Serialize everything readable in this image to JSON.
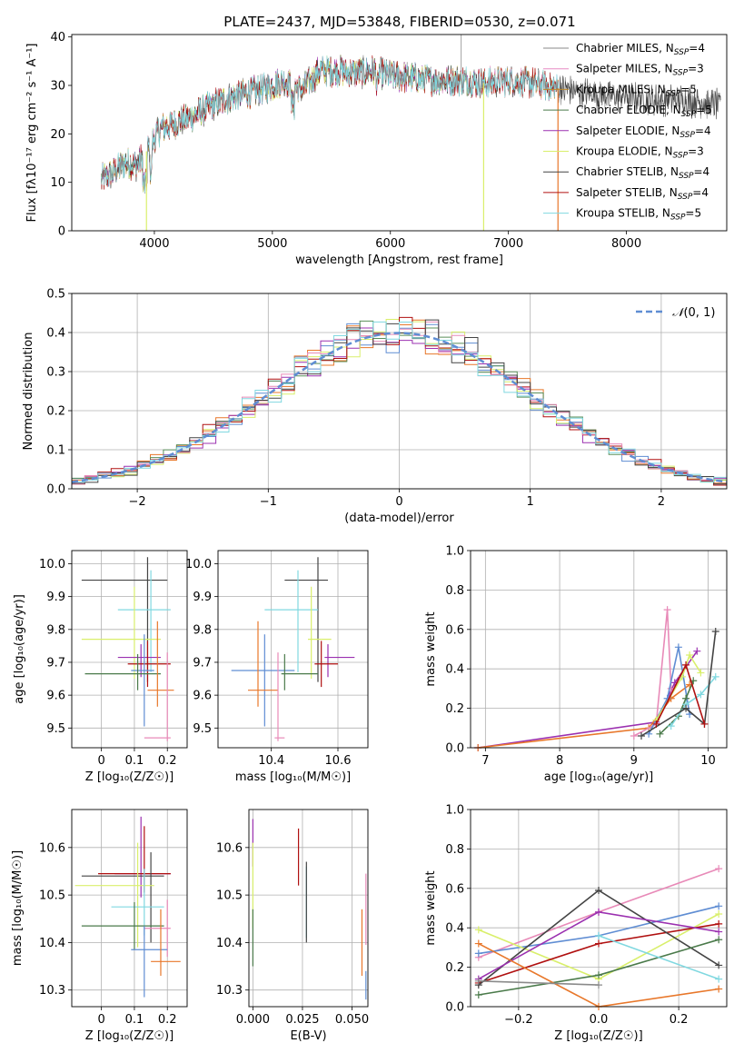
{
  "figure": {
    "title": "PLATE=2437, MJD=53848, FIBERID=0530, z=0.071"
  },
  "colors": {
    "Chabrier MILES": "#8a8a8a",
    "Salpeter MILES": "#e78ac3",
    "Kroupa MILES": "#c08a2a",
    "Chabrier ELODIE": "#4a7a4a",
    "Salpeter ELODIE": "#9b30b0",
    "Kroupa ELODIE": "#d9ef6b",
    "Chabrier STELIB": "#444444",
    "Salpeter STELIB": "#b01010",
    "Kroupa STELIB": "#80d8e0",
    "blue": "#5f8dd3",
    "orange": "#e8772a",
    "green": "#5a8f5a",
    "pink": "#e88ab8"
  },
  "chart_data": [
    {
      "id": "spectrum",
      "type": "line",
      "title": "PLATE=2437, MJD=53848, FIBERID=0530, z=0.071",
      "xlabel": "wavelength [Angstrom, rest frame]",
      "ylabel": "Flux [f$_\\lambda$10$^{-17}$ erg cm$^{-2}$ s$^{-1}$ A$^{-1}$]",
      "ylabel_display": "Flux [fλ10⁻¹⁷ erg cm⁻² s⁻¹ A⁻¹]",
      "xlim": [
        3300,
        8850
      ],
      "ylim": [
        0,
        40.5
      ],
      "xticks": [
        4000,
        5000,
        6000,
        7000,
        8000
      ],
      "yticks": [
        0,
        10,
        20,
        30,
        40
      ],
      "grid": false,
      "legend_position": "upper-right",
      "legend": [
        {
          "name": "Chabrier MILES, N_SSP=4",
          "label": "Chabrier MILES, N",
          "sub": "SSP",
          "suffix": "=4"
        },
        {
          "name": "Salpeter MILES, N_SSP=3",
          "label": "Salpeter MILES, N",
          "sub": "SSP",
          "suffix": "=3"
        },
        {
          "name": "Kroupa MILES, N_SSP=5",
          "label": "Kroupa MILES, N",
          "sub": "SSP",
          "suffix": "=5"
        },
        {
          "name": "Chabrier ELODIE, N_SSP=5",
          "label": "Chabrier ELODIE, N",
          "sub": "SSP",
          "suffix": "=5"
        },
        {
          "name": "Salpeter ELODIE, N_SSP=4",
          "label": "Salpeter ELODIE, N",
          "sub": "SSP",
          "suffix": "=4"
        },
        {
          "name": "Kroupa ELODIE, N_SSP=3",
          "label": "Kroupa ELODIE, N",
          "sub": "SSP",
          "suffix": "=3"
        },
        {
          "name": "Chabrier STELIB, N_SSP=4",
          "label": "Chabrier STELIB, N",
          "sub": "SSP",
          "suffix": "=4"
        },
        {
          "name": "Salpeter STELIB, N_SSP=4",
          "label": "Salpeter STELIB, N",
          "sub": "SSP",
          "suffix": "=4"
        },
        {
          "name": "Kroupa STELIB, N_SSP=5",
          "label": "Kroupa STELIB, N",
          "sub": "SSP",
          "suffix": "=5"
        }
      ],
      "envelope": {
        "x": [
          3550,
          3650,
          3750,
          3850,
          3950,
          4050,
          4200,
          4350,
          4500,
          4650,
          4800,
          4950,
          5100,
          5250,
          5400,
          5550,
          5700,
          5850,
          6000,
          6200,
          6400,
          6600,
          6800,
          7000,
          7200,
          7400,
          7600,
          7800,
          8000,
          8200,
          8400,
          8600,
          8800
        ],
        "y": [
          10.5,
          12,
          14,
          13.5,
          17,
          21,
          22.5,
          24,
          26,
          27.5,
          28.5,
          29.5,
          31,
          29,
          33,
          33,
          32.5,
          33,
          32,
          31.5,
          31,
          31,
          30.5,
          31,
          30.5,
          29.5,
          28.5,
          28,
          27.5,
          27,
          27,
          26.5,
          26
        ]
      },
      "dips": [
        {
          "x": 3933,
          "y": 0
        },
        {
          "x": 6790,
          "y": 0
        },
        {
          "x": 7420,
          "y": 0
        }
      ],
      "spike": {
        "x": 6600,
        "y": 40.5
      }
    },
    {
      "id": "residuals",
      "type": "histogram",
      "xlabel": "(data-model)/error",
      "ylabel": "Normed distribution",
      "xlim": [
        -2.5,
        2.5
      ],
      "ylim": [
        0,
        0.5
      ],
      "xticks": [
        -2,
        -1,
        0,
        1,
        2
      ],
      "xtick_labels": [
        "−2",
        "−1",
        "0",
        "1",
        "2"
      ],
      "yticks": [
        0.0,
        0.1,
        0.2,
        0.3,
        0.4,
        0.5
      ],
      "grid": true,
      "legend_position": "upper-right",
      "reference_curve": {
        "name": "N(0,1)",
        "label_main": "𝒩",
        "label_args": "(0, 1)",
        "mean": 0,
        "sigma": 1,
        "style": "dashed"
      },
      "bin_width": 0.1,
      "bins_start": -2.5
    },
    {
      "id": "age-vs-Z",
      "type": "errorbar",
      "xlabel": "Z [log₁₀(Z/Z☉)]",
      "ylabel": "age  [log₁₀(age/yr)]",
      "xlim": [
        -0.09,
        0.26
      ],
      "ylim": [
        9.44,
        10.04
      ],
      "xticks": [
        0.0,
        0.1,
        0.2
      ],
      "yticks": [
        9.5,
        9.6,
        9.7,
        9.8,
        9.9,
        10.0
      ],
      "grid": true,
      "points": [
        {
          "series": "Chabrier STELIB",
          "x": 0.14,
          "xerr": [
            0.2,
            0.06
          ],
          "y": 9.95,
          "yerr": [
            0.31,
            0.07
          ]
        },
        {
          "series": "Kroupa STELIB",
          "x": 0.15,
          "xerr": [
            0.1,
            0.06
          ],
          "y": 9.86,
          "yerr": [
            0.19,
            0.12
          ]
        },
        {
          "series": "Kroupa ELODIE",
          "x": 0.1,
          "xerr": [
            0.16,
            0.08
          ],
          "y": 9.77,
          "yerr": [
            0.12,
            0.16
          ]
        },
        {
          "series": "Salpeter ELODIE",
          "x": 0.12,
          "xerr": [
            0.07,
            0.06
          ],
          "y": 9.715,
          "yerr": [
            0.06,
            0.04
          ]
        },
        {
          "series": "Salpeter STELIB",
          "x": 0.14,
          "xerr": [
            0.06,
            0.07
          ],
          "y": 9.695,
          "yerr": [
            0.07,
            0.07
          ]
        },
        {
          "series": "blue",
          "x": 0.13,
          "xerr": [
            0.04,
            0.03
          ],
          "y": 9.675,
          "yerr": [
            0.17,
            0.11
          ]
        },
        {
          "series": "Chabrier ELODIE",
          "x": 0.11,
          "xerr": [
            0.16,
            0.07
          ],
          "y": 9.665,
          "yerr": [
            0.05,
            0.06
          ]
        },
        {
          "series": "orange",
          "x": 0.17,
          "xerr": [
            0.03,
            0.05
          ],
          "y": 9.615,
          "yerr": [
            0.05,
            0.21
          ]
        },
        {
          "series": "pink",
          "x": 0.2,
          "xerr": [
            0.07,
            0.01
          ],
          "y": 9.47,
          "yerr": [
            0.01,
            0.26
          ]
        }
      ]
    },
    {
      "id": "age-vs-mass",
      "type": "errorbar",
      "xlabel": "mass [log₁₀(M/M☉)]",
      "ylabel": "",
      "xlim": [
        10.24,
        10.69
      ],
      "ylim": [
        9.44,
        10.04
      ],
      "xticks": [
        10.4,
        10.6
      ],
      "yticks": [
        9.5,
        9.6,
        9.7,
        9.8,
        9.9,
        10.0
      ],
      "grid": true,
      "points": [
        {
          "series": "Chabrier STELIB",
          "x": 10.54,
          "xerr": [
            0.1,
            0.03
          ],
          "y": 9.95,
          "yerr": [
            0.31,
            0.07
          ]
        },
        {
          "series": "Kroupa STELIB",
          "x": 10.48,
          "xerr": [
            0.1,
            0.06
          ],
          "y": 9.86,
          "yerr": [
            0.19,
            0.12
          ]
        },
        {
          "series": "Kroupa ELODIE",
          "x": 10.52,
          "xerr": [
            0.01,
            0.06
          ],
          "y": 9.77,
          "yerr": [
            0.12,
            0.16
          ]
        },
        {
          "series": "Salpeter ELODIE",
          "x": 10.57,
          "xerr": [
            0.01,
            0.08
          ],
          "y": 9.715,
          "yerr": [
            0.06,
            0.04
          ]
        },
        {
          "series": "Salpeter STELIB",
          "x": 10.55,
          "xerr": [
            0.02,
            0.05
          ],
          "y": 9.695,
          "yerr": [
            0.07,
            0.07
          ]
        },
        {
          "series": "blue",
          "x": 10.38,
          "xerr": [
            0.1,
            0.09
          ],
          "y": 9.675,
          "yerr": [
            0.17,
            0.11
          ]
        },
        {
          "series": "Chabrier ELODIE",
          "x": 10.44,
          "xerr": [
            0.01,
            0.1
          ],
          "y": 9.665,
          "yerr": [
            0.05,
            0.06
          ]
        },
        {
          "series": "orange",
          "x": 10.36,
          "xerr": [
            0.03,
            0.06
          ],
          "y": 9.615,
          "yerr": [
            0.05,
            0.21
          ]
        },
        {
          "series": "pink",
          "x": 10.42,
          "xerr": [
            0.01,
            0.02
          ],
          "y": 9.47,
          "yerr": [
            0.01,
            0.26
          ]
        }
      ]
    },
    {
      "id": "weight-vs-age",
      "type": "line",
      "xlabel": "age  [log₁₀(age/yr)]",
      "ylabel": "mass weight",
      "xlim": [
        6.8,
        10.25
      ],
      "ylim": [
        0,
        1
      ],
      "xticks": [
        7,
        8,
        9,
        10
      ],
      "yticks": [
        0.0,
        0.2,
        0.4,
        0.6,
        0.8,
        1.0
      ],
      "grid": true,
      "series": [
        {
          "name": "Salpeter ELODIE",
          "x": [
            6.9,
            9.3,
            9.55,
            9.85
          ],
          "y": [
            0.0,
            0.13,
            0.33,
            0.49
          ]
        },
        {
          "name": "orange",
          "x": [
            6.9,
            9.2,
            9.5,
            9.75
          ],
          "y": [
            0.0,
            0.1,
            0.25,
            0.32
          ]
        },
        {
          "name": "pink",
          "x": [
            9.0,
            9.3,
            9.45,
            9.5
          ],
          "y": [
            0.06,
            0.12,
            0.7,
            0.3
          ]
        },
        {
          "name": "blue",
          "x": [
            9.2,
            9.45,
            9.6,
            9.75
          ],
          "y": [
            0.07,
            0.25,
            0.51,
            0.17
          ]
        },
        {
          "name": "Kroupa ELODIE",
          "x": [
            9.3,
            9.65,
            9.75,
            9.9
          ],
          "y": [
            0.14,
            0.36,
            0.47,
            0.38
          ]
        },
        {
          "name": "Chabrier ELODIE",
          "x": [
            9.35,
            9.6,
            9.7,
            9.8
          ],
          "y": [
            0.07,
            0.16,
            0.25,
            0.34
          ]
        },
        {
          "name": "Kroupa STELIB",
          "x": [
            9.5,
            9.7,
            9.9,
            10.1
          ],
          "y": [
            0.11,
            0.22,
            0.27,
            0.36
          ]
        },
        {
          "name": "Chabrier STELIB",
          "x": [
            9.1,
            9.7,
            9.95,
            10.1
          ],
          "y": [
            0.06,
            0.2,
            0.12,
            0.59
          ]
        },
        {
          "name": "Salpeter STELIB",
          "x": [
            9.3,
            9.7,
            9.95
          ],
          "y": [
            0.12,
            0.42,
            0.12
          ]
        }
      ]
    },
    {
      "id": "mass-vs-Z",
      "type": "errorbar",
      "xlabel": "Z [log₁₀(Z/Z☉)]",
      "ylabel": "mass [log₁₀(M/M☉)]",
      "xlim": [
        -0.09,
        0.26
      ],
      "ylim": [
        10.265,
        10.68
      ],
      "xticks": [
        0.0,
        0.1,
        0.2
      ],
      "yticks": [
        10.3,
        10.4,
        10.5,
        10.6
      ],
      "grid": true,
      "points": [
        {
          "series": "Salpeter ELODIE",
          "x": 0.12,
          "xerr": [
            0.08,
            0.09
          ],
          "y": 10.545,
          "yerr": [
            0.05,
            0.12
          ]
        },
        {
          "series": "Salpeter STELIB",
          "x": 0.13,
          "xerr": [
            0.14,
            0.08
          ],
          "y": 10.545,
          "yerr": [
            0.04,
            0.1
          ]
        },
        {
          "series": "Chabrier STELIB",
          "x": 0.15,
          "xerr": [
            0.21,
            0.04
          ],
          "y": 10.54,
          "yerr": [
            0.14,
            0.05
          ]
        },
        {
          "series": "Kroupa ELODIE",
          "x": 0.11,
          "xerr": [
            0.19,
            0.05
          ],
          "y": 10.52,
          "yerr": [
            0.13,
            0.09
          ]
        },
        {
          "series": "Kroupa STELIB",
          "x": 0.13,
          "xerr": [
            0.1,
            0.06
          ],
          "y": 10.475,
          "yerr": [
            0.06,
            0.08
          ]
        },
        {
          "series": "Chabrier ELODIE",
          "x": 0.1,
          "xerr": [
            0.16,
            0.09
          ],
          "y": 10.435,
          "yerr": [
            0.05,
            0.05
          ]
        },
        {
          "series": "pink",
          "x": 0.2,
          "xerr": [
            0.07,
            0.01
          ],
          "y": 10.43,
          "yerr": [
            0.06,
            0.06
          ]
        },
        {
          "series": "blue",
          "x": 0.13,
          "xerr": [
            0.04,
            0.07
          ],
          "y": 10.385,
          "yerr": [
            0.1,
            0.05
          ]
        },
        {
          "series": "orange",
          "x": 0.18,
          "xerr": [
            0.03,
            0.06
          ],
          "y": 10.36,
          "yerr": [
            0.03,
            0.11
          ]
        }
      ]
    },
    {
      "id": "mass-vs-EBV",
      "type": "errorbar",
      "xlabel": "E(B-V)",
      "ylabel": "",
      "xlim": [
        -0.002,
        0.058
      ],
      "ylim": [
        10.265,
        10.68
      ],
      "xticks": [
        0.0,
        0.025,
        0.05
      ],
      "xtick_labels": [
        "0.000",
        "0.025",
        "0.050"
      ],
      "yticks": [
        10.3,
        10.4,
        10.5,
        10.6
      ],
      "grid": true,
      "points": [
        {
          "series": "Salpeter ELODIE",
          "x": 0.0,
          "y": 10.61,
          "yerr": [
            0.05,
            0.05
          ]
        },
        {
          "series": "Kroupa ELODIE",
          "x": 0.0,
          "y": 10.52,
          "yerr": [
            0.09,
            0.09
          ]
        },
        {
          "series": "Chabrier ELODIE",
          "x": 0.0,
          "y": 10.41,
          "yerr": [
            0.06,
            0.06
          ]
        },
        {
          "series": "Salpeter STELIB",
          "x": 0.023,
          "y": 10.58,
          "yerr": [
            0.06,
            0.06
          ]
        },
        {
          "series": "Kroupa STELIB",
          "x": 0.027,
          "y": 10.485,
          "yerr": [
            0.075,
            0.075
          ]
        },
        {
          "series": "Chabrier STELIB",
          "x": 0.027,
          "y": 10.485,
          "yerr": [
            0.085,
            0.085
          ]
        },
        {
          "series": "orange",
          "x": 0.055,
          "y": 10.4,
          "yerr": [
            0.07,
            0.07
          ]
        },
        {
          "series": "pink",
          "x": 0.057,
          "y": 10.47,
          "yerr": [
            0.075,
            0.075
          ]
        },
        {
          "series": "blue",
          "x": 0.057,
          "y": 10.31,
          "yerr": [
            0.03,
            0.03
          ]
        }
      ]
    },
    {
      "id": "weight-vs-Z",
      "type": "line",
      "xlabel": "Z [log₁₀(Z/Z☉)]",
      "ylabel": "mass weight",
      "xlim": [
        -0.32,
        0.32
      ],
      "ylim": [
        0,
        1
      ],
      "xticks": [
        -0.2,
        0.0,
        0.2
      ],
      "xtick_labels": [
        "−0.2",
        "0.0",
        "0.2"
      ],
      "yticks": [
        0.0,
        0.2,
        0.4,
        0.6,
        0.8,
        1.0
      ],
      "grid": true,
      "series": [
        {
          "name": "pink",
          "x": [
            -0.3,
            0.0,
            0.3
          ],
          "y": [
            0.25,
            0.48,
            0.7
          ]
        },
        {
          "name": "blue",
          "x": [
            -0.3,
            0.0,
            0.3
          ],
          "y": [
            0.27,
            0.36,
            0.51
          ]
        },
        {
          "name": "Kroupa ELODIE",
          "x": [
            -0.3,
            0.0,
            0.3
          ],
          "y": [
            0.39,
            0.14,
            0.47
          ]
        },
        {
          "name": "Salpeter STELIB",
          "x": [
            -0.3,
            0.0,
            0.3
          ],
          "y": [
            0.12,
            0.32,
            0.42
          ]
        },
        {
          "name": "Chabrier STELIB",
          "x": [
            -0.3,
            0.0,
            0.3
          ],
          "y": [
            0.11,
            0.59,
            0.21
          ]
        },
        {
          "name": "Salpeter ELODIE",
          "x": [
            -0.3,
            0.0,
            0.3
          ],
          "y": [
            0.14,
            0.48,
            0.38
          ]
        },
        {
          "name": "Chabrier ELODIE",
          "x": [
            -0.3,
            0.0,
            0.3
          ],
          "y": [
            0.06,
            0.16,
            0.34
          ]
        },
        {
          "name": "Kroupa STELIB",
          "x": [
            0.0,
            0.3
          ],
          "y": [
            0.36,
            0.14
          ]
        },
        {
          "name": "orange",
          "x": [
            -0.3,
            0.0,
            0.3
          ],
          "y": [
            0.32,
            0.0,
            0.09
          ]
        },
        {
          "name": "Chabrier MILES",
          "x": [
            -0.3,
            0.0
          ],
          "y": [
            0.13,
            0.11
          ]
        }
      ]
    }
  ]
}
